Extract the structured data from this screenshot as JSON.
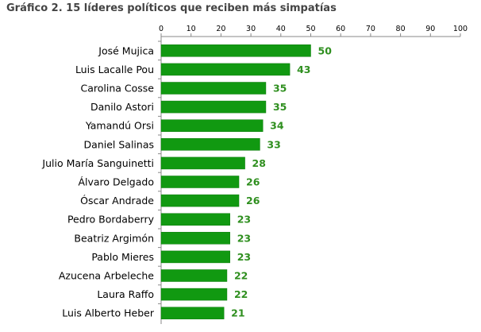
{
  "chart_data": {
    "type": "bar",
    "orientation": "horizontal",
    "title": "Gráfico 2. 15 líderes políticos que reciben más simpatías",
    "categories": [
      "José Mujica",
      "Luis Lacalle Pou",
      "Carolina Cosse",
      "Danilo Astori",
      "Yamandú Orsi",
      "Daniel Salinas",
      "Julio María Sanguinetti",
      "Álvaro Delgado",
      "Óscar Andrade",
      "Pedro Bordaberry",
      "Beatriz Argimón",
      "Pablo Mieres",
      "Azucena Arbeleche",
      "Laura Raffo",
      "Luis Alberto Heber"
    ],
    "values": [
      50,
      43,
      35,
      35,
      34,
      33,
      28,
      26,
      26,
      23,
      23,
      23,
      22,
      22,
      21
    ],
    "value_labels": [
      "50",
      "43",
      "35",
      "35",
      "34",
      "33",
      "28",
      "26",
      "26",
      "23",
      "23",
      "23",
      "22",
      "22",
      "21"
    ],
    "xlim": [
      0,
      100
    ],
    "x_ticks": [
      0,
      10,
      20,
      30,
      40,
      50,
      60,
      70,
      80,
      90,
      100
    ],
    "x_tick_labels": [
      "0",
      "10",
      "20",
      "30",
      "40",
      "50",
      "60",
      "70",
      "80",
      "90",
      "100"
    ],
    "x_axis_position": "top",
    "grid": false,
    "legend": "none",
    "bar_color": "#119911",
    "bar_edge_color": "#0a7a0a",
    "label_color": "#2f8f1f",
    "axis_color": "#888888"
  }
}
